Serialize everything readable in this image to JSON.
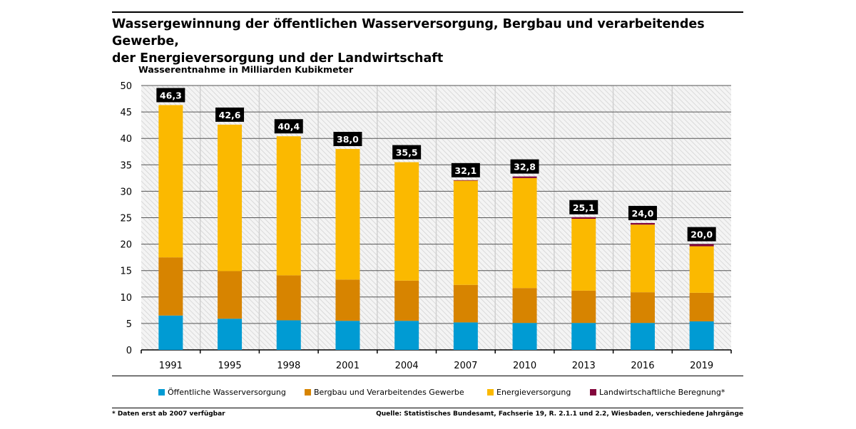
{
  "title_line1": "Wassergewinnung der öffentlichen Wasserversorgung, Bergbau und verarbeitendes Gewerbe,",
  "title_line2": "der Energieversorgung und der Landwirtschaft",
  "footnote": "* Daten erst ab 2007 verfügbar",
  "source": "Quelle: Statistisches Bundesamt, Fachserie 19, R. 2.1.1 und 2.2, Wiesbaden, verschiedene Jahrgänge",
  "chart_data": {
    "type": "bar",
    "stacked": true,
    "ylabel": "Wasserentnahme in Milliarden Kubikmeter",
    "ylim": [
      0,
      50
    ],
    "yticks": [
      "0",
      "5",
      "10",
      "15",
      "20",
      "25",
      "30",
      "35",
      "40",
      "45",
      "50"
    ],
    "grid": true,
    "legend_position": "bottom",
    "categories": [
      "1991",
      "1995",
      "1998",
      "2001",
      "2004",
      "2007",
      "2010",
      "2013",
      "2016",
      "2019"
    ],
    "totals": [
      "46,3",
      "42,6",
      "40,4",
      "38,0",
      "35,5",
      "32,1",
      "32,8",
      "25,1",
      "24,0",
      "20,0"
    ],
    "series": [
      {
        "name": "Öffentliche Wasserversorgung",
        "color": "#009BD3",
        "values": [
          6.5,
          5.9,
          5.6,
          5.5,
          5.5,
          5.2,
          5.1,
          5.1,
          5.1,
          5.4
        ]
      },
      {
        "name": "Bergbau und Verarbeitendes Gewerbe",
        "color": "#D78400",
        "values": [
          11.0,
          9.0,
          8.5,
          7.8,
          7.6,
          7.1,
          6.6,
          6.1,
          5.8,
          5.4
        ]
      },
      {
        "name": "Energieversorgung",
        "color": "#FBB900",
        "values": [
          28.8,
          27.7,
          26.3,
          24.7,
          22.4,
          19.7,
          20.8,
          13.6,
          12.8,
          8.8
        ]
      },
      {
        "name": "Landwirtschaftliche Beregnung*",
        "color": "#83053C",
        "values": [
          0,
          0,
          0,
          0,
          0,
          0.1,
          0.3,
          0.3,
          0.3,
          0.4
        ]
      }
    ]
  }
}
